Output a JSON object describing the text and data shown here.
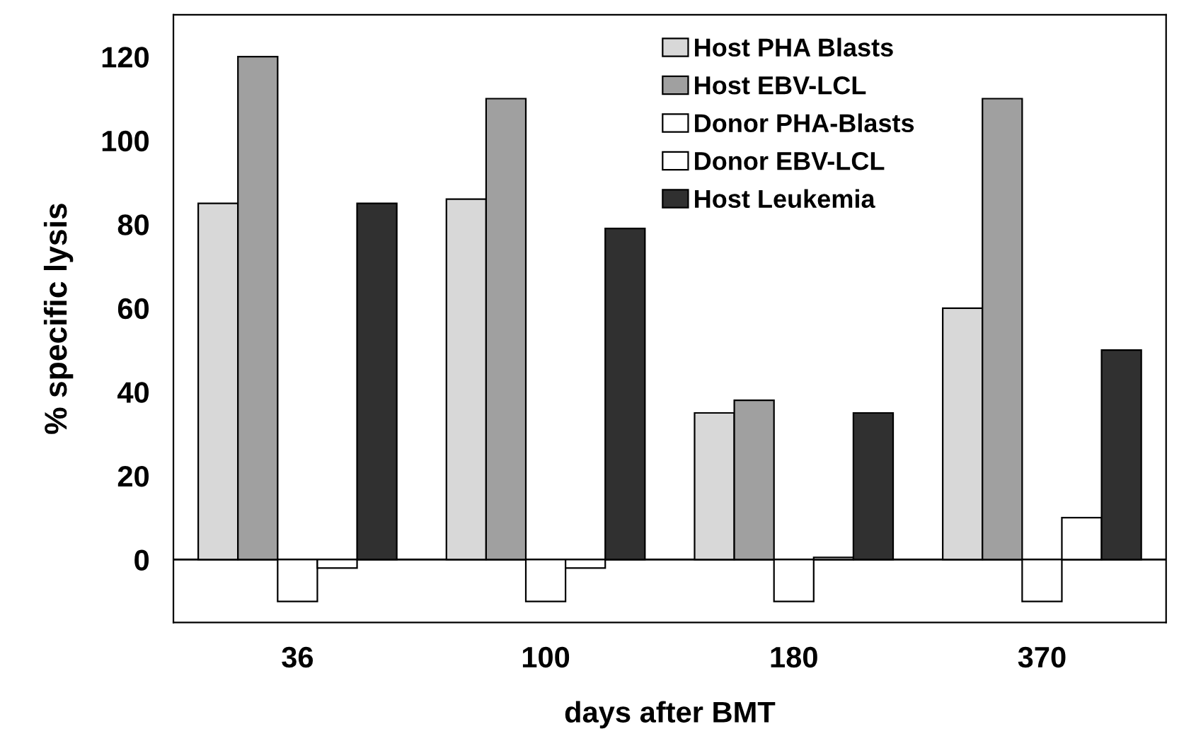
{
  "chart_data": {
    "type": "bar",
    "xlabel": "days after BMT",
    "ylabel": "% specific lysis",
    "categories": [
      "36",
      "100",
      "180",
      "370"
    ],
    "series": [
      {
        "name": "Host PHA Blasts",
        "color": "#d8d8d8",
        "values": [
          85,
          86,
          35,
          60
        ]
      },
      {
        "name": "Host EBV-LCL",
        "color": "#a0a0a0",
        "values": [
          120,
          110,
          38,
          110
        ]
      },
      {
        "name": "Donor PHA-Blasts",
        "color": "#ffffff",
        "values": [
          -10,
          -10,
          -10,
          -10
        ]
      },
      {
        "name": "Donor EBV-LCL",
        "color": "#ffffff",
        "values": [
          -2,
          -2,
          0.5,
          10
        ]
      },
      {
        "name": "Host Leukemia",
        "color": "#303030",
        "values": [
          85,
          79,
          35,
          50
        ]
      }
    ],
    "ylim": [
      -15,
      130
    ],
    "yticks": [
      0,
      20,
      40,
      60,
      80,
      100,
      120
    ],
    "ref_lines": [
      {
        "axis": "y",
        "value": 0,
        "color": "#000000"
      }
    ],
    "grid": false,
    "legend": "top right"
  }
}
